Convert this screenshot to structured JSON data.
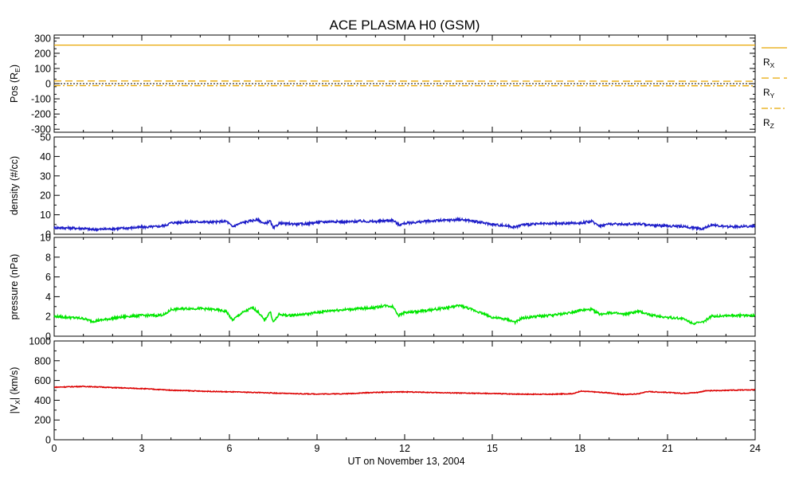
{
  "figure": {
    "title": "ACE PLASMA H0 (GSM)",
    "xlabel": "UT on November 13, 2004"
  },
  "chart_data": [
    {
      "type": "line",
      "panel": "position",
      "ylabel": "Pos (R",
      "ylabel_sub": "E",
      "ylabel_tail": ")",
      "ylim": [
        -320,
        320
      ],
      "yticks": [
        -300,
        -200,
        -100,
        0,
        100,
        200,
        300
      ],
      "xlim": [
        0,
        24
      ],
      "xticks": [
        0,
        3,
        6,
        9,
        12,
        15,
        18,
        21,
        24
      ],
      "legend_placement": "right",
      "series": [
        {
          "name": "R",
          "sub": "X",
          "color": "#e8a600",
          "dash": "",
          "x": [
            0,
            24
          ],
          "y": [
            254,
            254
          ]
        },
        {
          "name": "R",
          "sub": "Y",
          "color": "#e8a600",
          "dash": "9,5",
          "x": [
            0,
            24
          ],
          "y": [
            18,
            16
          ]
        },
        {
          "name": "R",
          "sub": "Z",
          "color": "#e8a600",
          "dash": "8,3,2,3",
          "x": [
            0,
            24
          ],
          "y": [
            -13,
            -14
          ]
        }
      ],
      "zero_line": {
        "color": "#000000",
        "dash": "2,2"
      }
    },
    {
      "type": "line",
      "panel": "density",
      "ylabel": "density (#/cc)",
      "ylim": [
        0,
        50
      ],
      "yticks": [
        0,
        10,
        20,
        30,
        40,
        50
      ],
      "xlim": [
        0,
        24
      ],
      "xticks": [
        0,
        3,
        6,
        9,
        12,
        15,
        18,
        21,
        24
      ],
      "series": [
        {
          "color": "#1c1cc8",
          "x": [
            0,
            0.5,
            1,
            1.3,
            2,
            2.5,
            3,
            3.5,
            3.8,
            4,
            4.5,
            5,
            5.5,
            5.9,
            6.1,
            6.4,
            6.8,
            7.0,
            7.2,
            7.4,
            7.5,
            7.7,
            8,
            8.5,
            9,
            9.5,
            10,
            10.5,
            11,
            11.3,
            11.6,
            11.8,
            12,
            12.5,
            13,
            13.5,
            13.9,
            14.2,
            14.5,
            15,
            15.5,
            15.8,
            16,
            16.5,
            17,
            17.5,
            18,
            18.4,
            18.7,
            19,
            19.5,
            20,
            20.5,
            21,
            21.5,
            21.9,
            22.2,
            22.5,
            23,
            23.5,
            24
          ],
          "y": [
            3.4,
            3.2,
            3.0,
            2.4,
            2.8,
            3.2,
            3.6,
            3.9,
            4.5,
            5.9,
            6.3,
            6.4,
            6.2,
            6.7,
            3.9,
            5.8,
            7.1,
            7.4,
            5.3,
            6.8,
            2.9,
            5.6,
            5.4,
            5.2,
            6.1,
            6.6,
            6.3,
            6.7,
            6.5,
            6.9,
            7.2,
            4.8,
            5.6,
            6.3,
            6.9,
            7.2,
            7.6,
            7.1,
            6.3,
            5.1,
            4.3,
            3.6,
            4.9,
            5.2,
            5.4,
            5.6,
            5.8,
            6.6,
            4.3,
            5.3,
            5.1,
            5.4,
            4.6,
            4.3,
            4.0,
            3.3,
            2.8,
            4.9,
            3.8,
            4.0,
            4.1
          ]
        }
      ]
    },
    {
      "type": "line",
      "panel": "pressure",
      "ylabel": "pressure (nPa)",
      "ylim": [
        0,
        10
      ],
      "yticks": [
        0,
        2,
        4,
        6,
        8,
        10
      ],
      "xlim": [
        0,
        24
      ],
      "xticks": [
        0,
        3,
        6,
        9,
        12,
        15,
        18,
        21,
        24
      ],
      "series": [
        {
          "color": "#00e600",
          "x": [
            0,
            0.5,
            1,
            1.3,
            2,
            2.5,
            3,
            3.5,
            3.8,
            4,
            4.5,
            5,
            5.5,
            5.9,
            6.1,
            6.4,
            6.8,
            7.0,
            7.2,
            7.4,
            7.5,
            7.7,
            8,
            8.5,
            9,
            9.5,
            10,
            10.5,
            11,
            11.3,
            11.6,
            11.8,
            12,
            12.5,
            13,
            13.5,
            13.9,
            14.2,
            14.5,
            15,
            15.5,
            15.8,
            16,
            16.5,
            17,
            17.5,
            18,
            18.4,
            18.7,
            19,
            19.5,
            20,
            20.5,
            21,
            21.5,
            21.9,
            22.2,
            22.5,
            23,
            23.5,
            24
          ],
          "y": [
            2.0,
            1.9,
            1.8,
            1.5,
            1.8,
            2.0,
            2.1,
            2.1,
            2.2,
            2.7,
            2.8,
            2.8,
            2.7,
            2.5,
            1.6,
            2.3,
            2.9,
            2.4,
            1.6,
            2.5,
            1.4,
            2.2,
            2.1,
            2.2,
            2.4,
            2.6,
            2.7,
            2.8,
            2.9,
            3.1,
            3.0,
            2.1,
            2.4,
            2.5,
            2.7,
            2.9,
            3.1,
            2.8,
            2.5,
            1.9,
            1.7,
            1.4,
            1.8,
            2.0,
            2.1,
            2.3,
            2.6,
            2.7,
            2.2,
            2.4,
            2.2,
            2.5,
            2.1,
            1.9,
            1.8,
            1.3,
            1.4,
            2.0,
            2.1,
            2.1,
            2.1
          ]
        }
      ]
    },
    {
      "type": "line",
      "panel": "velocity",
      "ylabel_pre": "|V",
      "ylabel_sub": "X",
      "ylabel_tail": "| (km/s)",
      "ylim": [
        0,
        1000
      ],
      "yticks": [
        0,
        200,
        400,
        600,
        800,
        1000
      ],
      "xlim": [
        0,
        24
      ],
      "xticks": [
        0,
        3,
        6,
        9,
        12,
        15,
        18,
        21,
        24
      ],
      "series": [
        {
          "color": "#dc0000",
          "x": [
            0,
            1,
            1.5,
            2,
            3,
            4,
            5,
            6,
            7,
            8,
            9,
            10,
            11,
            12,
            13,
            14,
            15,
            16,
            17,
            17.8,
            18,
            18.3,
            19,
            19.5,
            20,
            20.3,
            21,
            21.5,
            22,
            22.3,
            23,
            24
          ],
          "y": [
            532,
            540,
            535,
            528,
            518,
            502,
            492,
            485,
            478,
            468,
            463,
            466,
            480,
            485,
            478,
            472,
            468,
            462,
            460,
            468,
            492,
            488,
            474,
            458,
            465,
            488,
            479,
            470,
            478,
            495,
            500,
            506
          ]
        }
      ]
    }
  ]
}
